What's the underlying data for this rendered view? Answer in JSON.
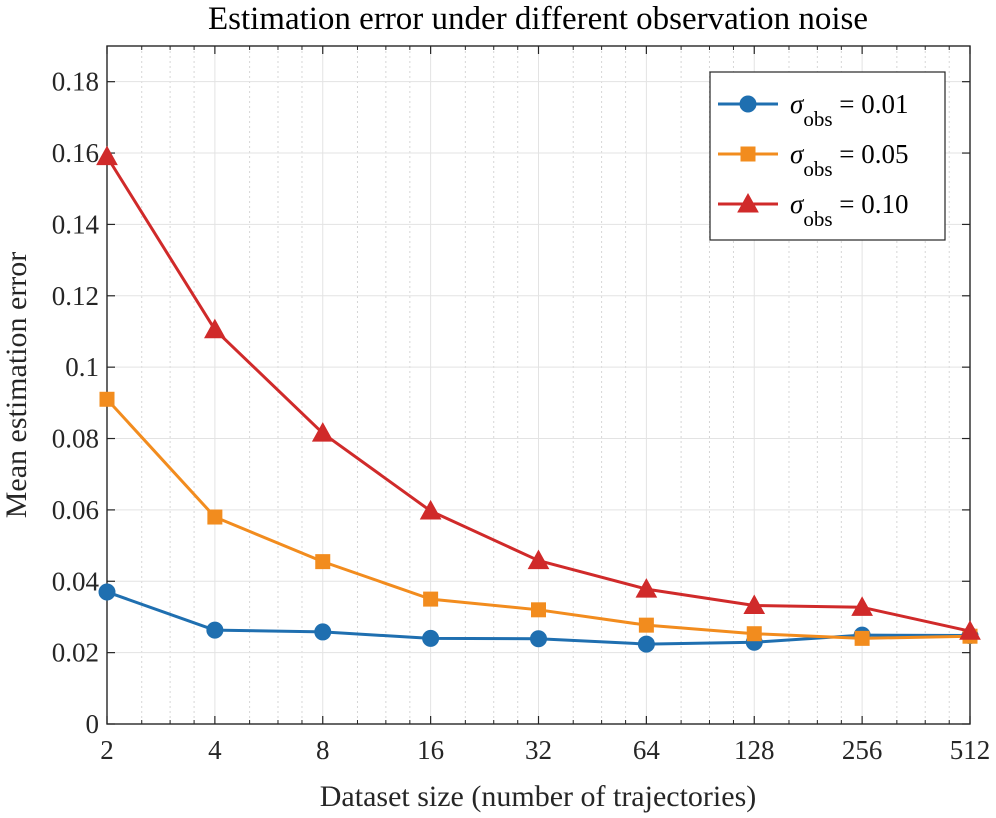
{
  "chart_data": {
    "type": "line",
    "title": "Estimation error under different observation noise",
    "xlabel": "Dataset size (number of trajectories)",
    "ylabel": "Mean estimation error",
    "xscale": "log2",
    "x": [
      2,
      4,
      8,
      16,
      32,
      64,
      128,
      256,
      512
    ],
    "x_tick_labels": [
      "2",
      "4",
      "8",
      "16",
      "32",
      "64",
      "128",
      "256",
      "512"
    ],
    "xlim": [
      2,
      512
    ],
    "ylim": [
      0,
      0.19
    ],
    "y_ticks": [
      0,
      0.02,
      0.04,
      0.06,
      0.08,
      0.1,
      0.12,
      0.14,
      0.16,
      0.18
    ],
    "y_tick_labels": [
      "0",
      "0.02",
      "0.04",
      "0.06",
      "0.08",
      "0.1",
      "0.12",
      "0.14",
      "0.16",
      "0.18"
    ],
    "grid": true,
    "legend_position": "top-right",
    "series": [
      {
        "name": "σobs = 0.01",
        "symbol": "σ",
        "subscript": "obs",
        "value_text": " = 0.01",
        "marker": "circle",
        "color": "#1f6fb0",
        "values": [
          0.037,
          0.0263,
          0.0258,
          0.024,
          0.0239,
          0.0224,
          0.0229,
          0.0249,
          0.0248
        ]
      },
      {
        "name": "σobs = 0.05",
        "symbol": "σ",
        "subscript": "obs",
        "value_text": " = 0.05",
        "marker": "square",
        "color": "#f28c1e",
        "values": [
          0.091,
          0.058,
          0.0455,
          0.035,
          0.032,
          0.0277,
          0.0253,
          0.024,
          0.0246
        ]
      },
      {
        "name": "σobs = 0.10",
        "symbol": "σ",
        "subscript": "obs",
        "value_text": " = 0.10",
        "marker": "triangle",
        "color": "#d02a2a",
        "values": [
          0.159,
          0.1105,
          0.0815,
          0.0597,
          0.0458,
          0.0378,
          0.0332,
          0.0327,
          0.026
        ]
      }
    ]
  }
}
